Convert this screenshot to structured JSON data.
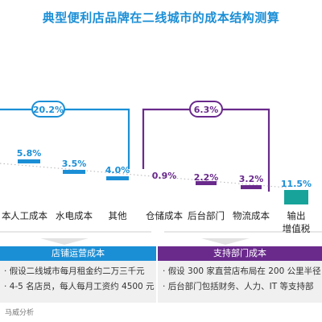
{
  "title": "典型便利店品牌在二线城市的成本结构测算",
  "colors": {
    "title": "#1b8fd6",
    "store_group": "#1b8fd6",
    "support_group": "#6a2a8c",
    "output_tax": "#17a39a",
    "label_text": "#1b8fd6",
    "support_label_text": "#6a2a8c"
  },
  "groups": [
    {
      "key": "store",
      "total_label": "20.2%"
    },
    {
      "key": "support",
      "total_label": "6.3%"
    }
  ],
  "chart_data": {
    "type": "bar",
    "title": "典型便利店品牌在二线城市的成本结构测算",
    "categories": [
      "…本",
      "人工成本",
      "水电成本",
      "其他",
      "仓储成本",
      "后台部门",
      "物流成本",
      "输出增值税"
    ],
    "values": [
      null,
      5.8,
      3.5,
      4.0,
      0.9,
      2.2,
      3.2,
      11.5
    ],
    "value_labels": [
      "",
      "5.8%",
      "3.5%",
      "4.0%",
      "0.9%",
      "2.2%",
      "3.2%",
      "11.5%"
    ],
    "series_group": [
      "store",
      "store",
      "store",
      "store",
      "support",
      "support",
      "support",
      "tax"
    ],
    "group_totals": {
      "store": "20.2%",
      "support": "6.3%"
    },
    "category_label_lines": [
      [
        "本"
      ],
      [
        "人工成本"
      ],
      [
        "水电成本"
      ],
      [
        "其他"
      ],
      [
        "仓储成本"
      ],
      [
        "后台部门"
      ],
      [
        "物流成本"
      ],
      [
        "输出",
        "增值税"
      ]
    ]
  },
  "panels": [
    {
      "key": "store",
      "header": "店铺运营成本",
      "lines": [
        "假设二线城市每月租金约二万三千元",
        "4-5 名店员，每人每月工资约 4500 元"
      ]
    },
    {
      "key": "support",
      "header": "支持部门成本",
      "lines": [
        "假设 300 家直营店布局在 200 公里半径",
        "后台部门包括财务、人力、IT 等支持部"
      ]
    }
  ],
  "source": "马威分析"
}
